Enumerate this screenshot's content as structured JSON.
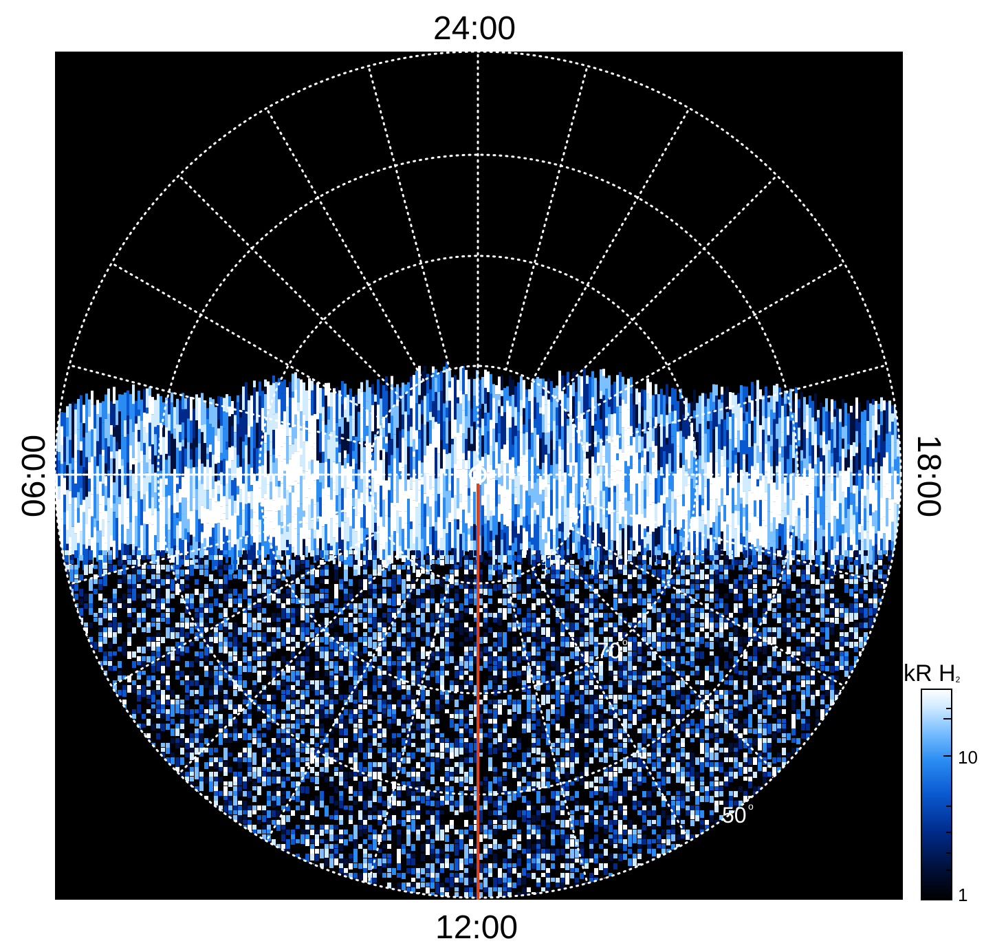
{
  "figure": {
    "local_time_labels": {
      "top": "24:00",
      "bottom": "12:00",
      "left": "06:00",
      "right": "18:00"
    },
    "latitude_labels": [
      {
        "value": "70",
        "degree": "o"
      },
      {
        "value": "50",
        "degree": "o"
      }
    ],
    "colorbar": {
      "title_main": "kR H",
      "title_sub": "2",
      "ticks": [
        "10",
        "1"
      ],
      "scale": "log",
      "colors": [
        "#000000",
        "#00103a",
        "#002a8a",
        "#0a58d0",
        "#2a8cf2",
        "#7cc0ff",
        "#d2ecff",
        "#ffffff"
      ]
    },
    "colors": {
      "background": "#000000",
      "grid": "#ffffff",
      "meridian_line": "#e0401a",
      "emission": "#2a8cf2"
    }
  }
}
